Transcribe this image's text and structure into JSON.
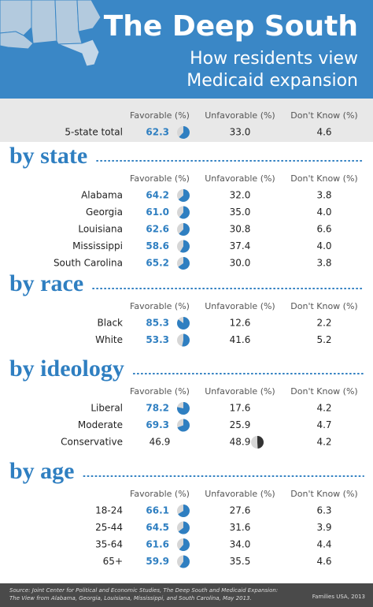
{
  "header": {
    "title": "The Deep South",
    "subtitle": [
      "How residents view",
      "Medicaid expansion"
    ]
  },
  "columns": [
    "Favorable (%)",
    "Unfavorable (%)",
    "Don't Know (%)"
  ],
  "total": {
    "label": "5-state total",
    "values": [
      "62.3",
      "33.0",
      "4.6"
    ]
  },
  "sections": [
    {
      "title": "by state",
      "rows": [
        {
          "label": "Alabama",
          "values": [
            "64.2",
            "32.0",
            "3.8"
          ]
        },
        {
          "label": "Georgia",
          "values": [
            "61.0",
            "35.0",
            "4.0"
          ]
        },
        {
          "label": "Louisiana",
          "values": [
            "62.6",
            "30.8",
            "6.6"
          ]
        },
        {
          "label": "Mississippi",
          "values": [
            "58.6",
            "37.4",
            "4.0"
          ]
        },
        {
          "label": "South Carolina",
          "values": [
            "65.2",
            "30.0",
            "3.8"
          ]
        }
      ]
    },
    {
      "title": "by race",
      "rows": [
        {
          "label": "Black",
          "values": [
            "85.3",
            "12.6",
            "2.2"
          ]
        },
        {
          "label": "White",
          "values": [
            "53.3",
            "41.6",
            "5.2"
          ]
        }
      ]
    },
    {
      "title": "by ideology",
      "rows": [
        {
          "label": "Liberal",
          "values": [
            "78.2",
            "17.6",
            "4.2"
          ]
        },
        {
          "label": "Moderate",
          "values": [
            "69.3",
            "25.9",
            "4.7"
          ]
        },
        {
          "label": "Conservative",
          "values": [
            "46.9",
            "48.9",
            "4.2"
          ]
        }
      ]
    },
    {
      "title": "by age",
      "rows": [
        {
          "label": "18-24",
          "values": [
            "66.1",
            "27.6",
            "6.3"
          ]
        },
        {
          "label": "25-44",
          "values": [
            "64.5",
            "31.6",
            "3.9"
          ]
        },
        {
          "label": "35-64",
          "values": [
            "61.6",
            "34.0",
            "4.4"
          ]
        },
        {
          "label": "65+",
          "values": [
            "59.9",
            "35.5",
            "4.6"
          ]
        }
      ]
    }
  ],
  "footer": {
    "source": [
      "Source: Joint Center for Political and Economic Studies, The Deep South and Medicaid Expansion:",
      "The View from Alabama, Georgia, Louisiana, Mississippi, and South Carolina, May 2013."
    ],
    "credit": "Families USA, 2013"
  }
}
